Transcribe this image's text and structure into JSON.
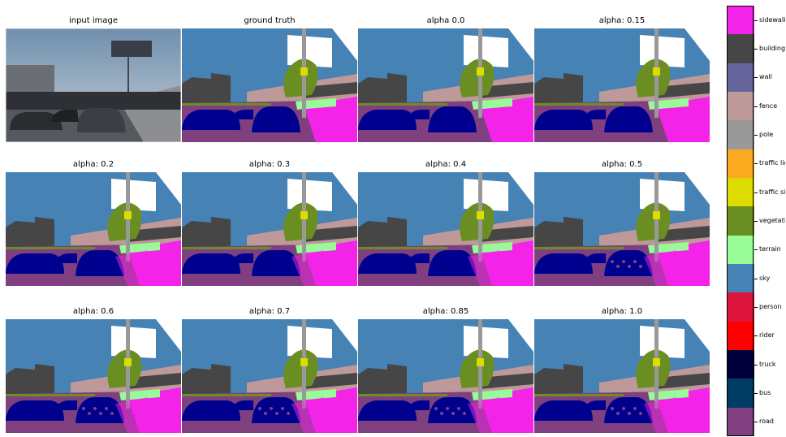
{
  "panels": [
    {
      "title": "input image",
      "kind": "photo",
      "variant": 0
    },
    {
      "title": "ground truth",
      "kind": "seg",
      "variant": 0
    },
    {
      "title": "alpha 0.0",
      "kind": "seg",
      "variant": 1
    },
    {
      "title": "alpha: 0.15",
      "kind": "seg",
      "variant": 2
    },
    {
      "title": "alpha: 0.2",
      "kind": "seg",
      "variant": 3
    },
    {
      "title": "alpha: 0.3",
      "kind": "seg",
      "variant": 4
    },
    {
      "title": "alpha: 0.4",
      "kind": "seg",
      "variant": 5
    },
    {
      "title": "alpha: 0.5",
      "kind": "seg",
      "variant": 6
    },
    {
      "title": "alpha: 0.6",
      "kind": "seg",
      "variant": 7
    },
    {
      "title": "alpha: 0.7",
      "kind": "seg",
      "variant": 8
    },
    {
      "title": "alpha: 0.85",
      "kind": "seg",
      "variant": 9
    },
    {
      "title": "alpha: 1.0",
      "kind": "seg",
      "variant": 10
    }
  ],
  "legend": {
    "items": [
      {
        "label": "sidewalk",
        "color": "#f423e8"
      },
      {
        "label": "building",
        "color": "#464646"
      },
      {
        "label": "wall",
        "color": "#66669c"
      },
      {
        "label": "fence",
        "color": "#be9999"
      },
      {
        "label": "pole",
        "color": "#999999"
      },
      {
        "label": "traffic light",
        "color": "#faaa1e"
      },
      {
        "label": "traffic sign",
        "color": "#dcdc00"
      },
      {
        "label": "vegetation",
        "color": "#6b8e23"
      },
      {
        "label": "terrain",
        "color": "#98fb98"
      },
      {
        "label": "sky",
        "color": "#4682b4"
      },
      {
        "label": "person",
        "color": "#dc143c"
      },
      {
        "label": "rider",
        "color": "#ff0000"
      },
      {
        "label": "truck",
        "color": "#00003c"
      },
      {
        "label": "bus",
        "color": "#003c64"
      },
      {
        "label": "road",
        "color": "#804080"
      }
    ]
  },
  "colors": {
    "sky": "#4682b4",
    "building": "#464646",
    "road": "#804080",
    "sidewalk": "#f423e8",
    "car": "#00008e",
    "vegetation": "#6b8e23",
    "pole": "#999999",
    "traffic_sign": "#dcdc00",
    "fence": "#be9999",
    "terrain": "#98fb98",
    "billboard": "#ffffff"
  }
}
